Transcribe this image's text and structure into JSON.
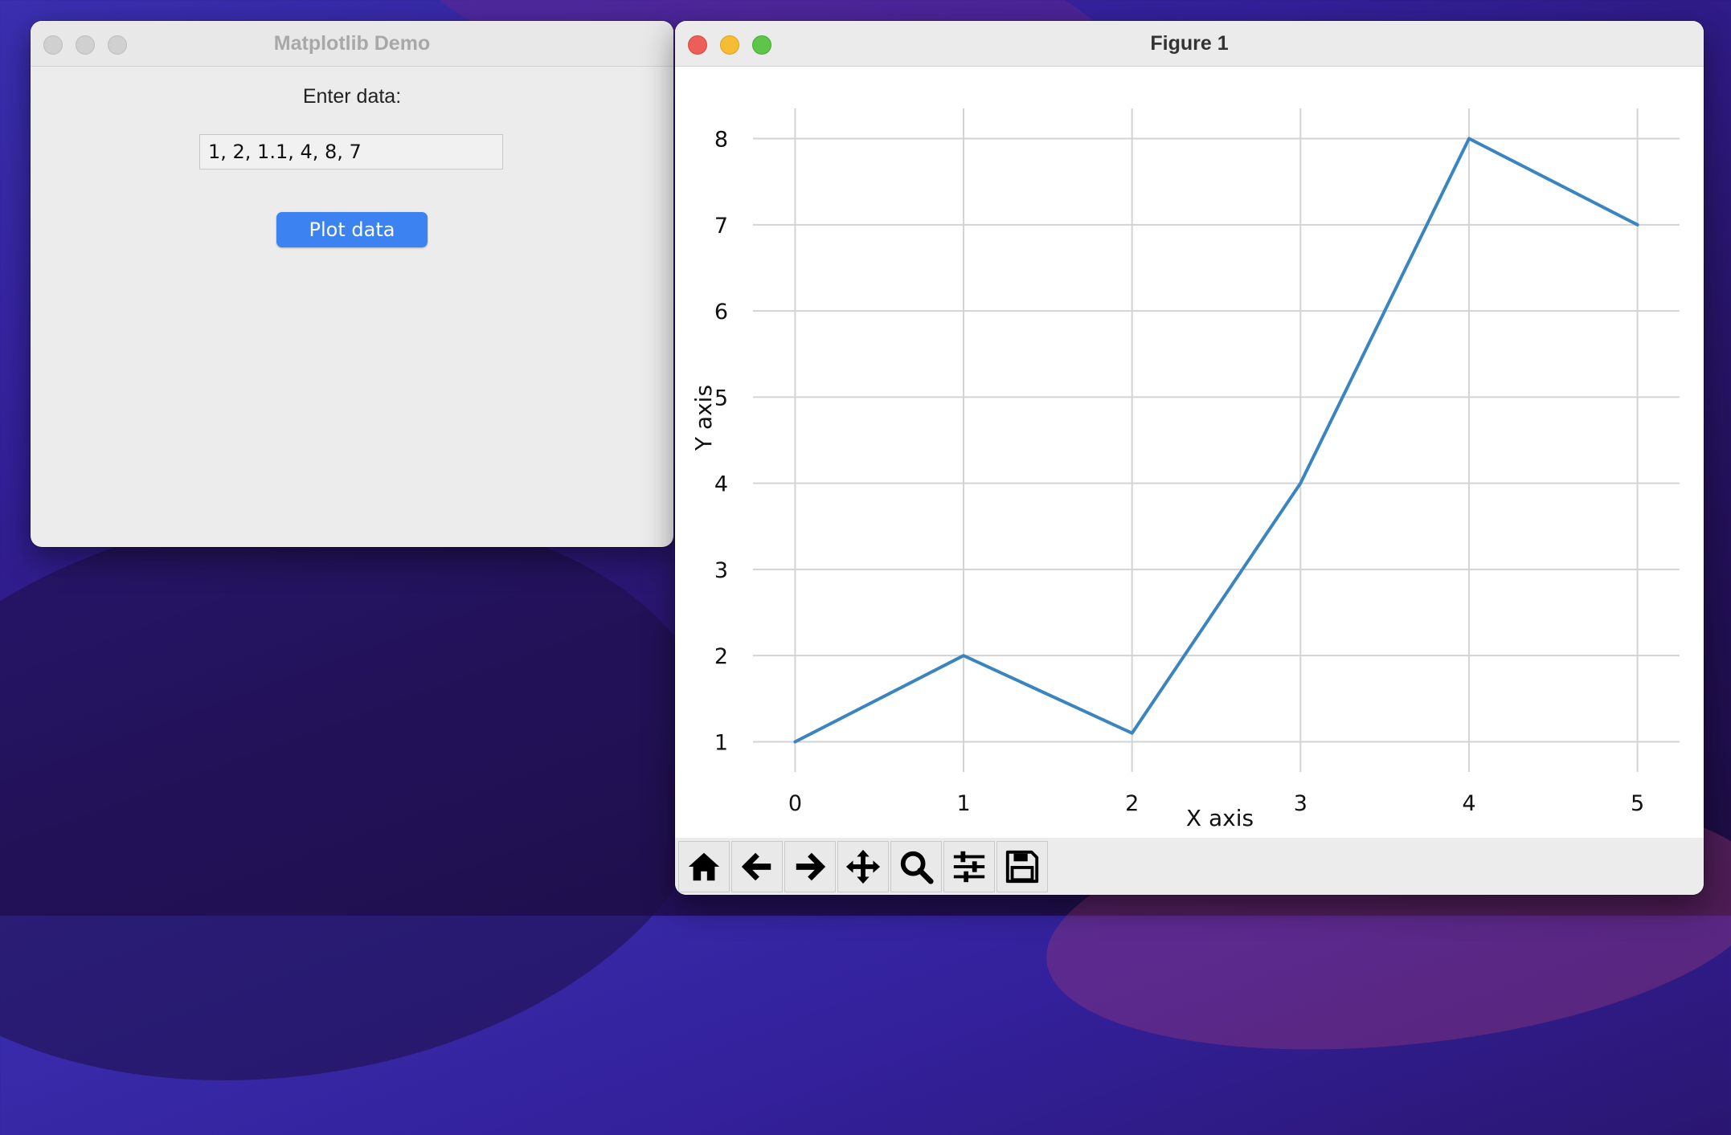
{
  "demo_window": {
    "title": "Matplotlib Demo",
    "prompt_label": "Enter data:",
    "input_value": "1, 2, 1.1, 4, 8, 7",
    "plot_button_label": "Plot data"
  },
  "figure_window": {
    "title": "Figure 1",
    "toolbar": [
      {
        "name": "home-icon"
      },
      {
        "name": "back-arrow-icon"
      },
      {
        "name": "forward-arrow-icon"
      },
      {
        "name": "pan-move-icon"
      },
      {
        "name": "zoom-magnifier-icon"
      },
      {
        "name": "configure-subplots-icon"
      },
      {
        "name": "save-floppy-icon"
      }
    ]
  },
  "chart_data": {
    "type": "line",
    "x": [
      0,
      1,
      2,
      3,
      4,
      5
    ],
    "y": [
      1,
      2,
      1.1,
      4,
      8,
      7
    ],
    "xlabel": "X axis",
    "ylabel": "Y axis",
    "xticks": [
      0,
      1,
      2,
      3,
      4,
      5
    ],
    "yticks": [
      1,
      2,
      3,
      4,
      5,
      6,
      7,
      8
    ],
    "xlim": [
      -0.25,
      5.25
    ],
    "ylim": [
      0.65,
      8.35
    ],
    "grid": true,
    "line_color": "#3a84c0"
  }
}
